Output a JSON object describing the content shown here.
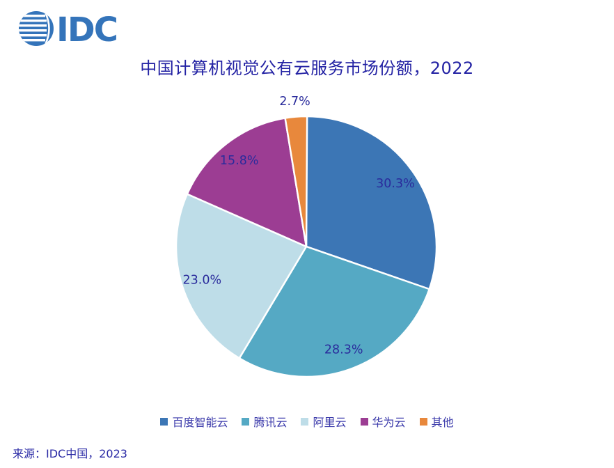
{
  "header": {
    "logo_text": "IDC",
    "logo_color": "#3474BA",
    "title": "中国计算机视觉公有云服务市场份额，2022",
    "title_color": "#2423A4"
  },
  "chart_data": {
    "type": "pie",
    "title": "中国计算机视觉公有云服务市场份额，2022",
    "categories": [
      "百度智能云",
      "腾讯云",
      "阿里云",
      "华为云",
      "其他"
    ],
    "values": [
      30.3,
      28.3,
      23.0,
      15.8,
      2.7
    ],
    "labels": [
      "30.3%",
      "28.3%",
      "23.0%",
      "15.8%",
      "2.7%"
    ],
    "colors": [
      "#3C76B5",
      "#55A9C4",
      "#BEDDE8",
      "#9C3D93",
      "#E8883C"
    ],
    "label_color": "#2A2B9C",
    "start_angle_deg": 0,
    "direction": "clockwise",
    "legend_position": "bottom",
    "grid": false
  },
  "footer": {
    "source": "来源：IDC中国，2023"
  }
}
